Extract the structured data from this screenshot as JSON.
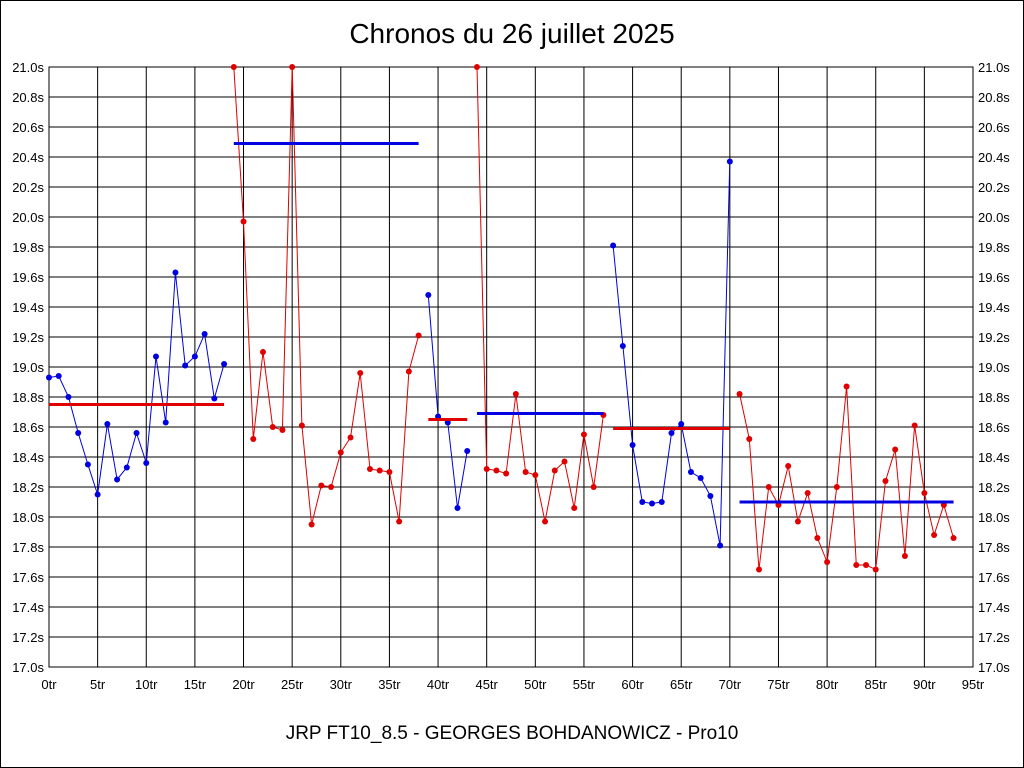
{
  "chart_data": {
    "type": "line",
    "title": "Chronos du 26 juillet 2025",
    "footer": "JRP FT10_8.5 - GEORGES BOHDANOWICZ - Pro10",
    "ylim": [
      17.0,
      21.0
    ],
    "xlim": [
      0,
      95
    ],
    "y_ticks": [
      "17.0s",
      "17.2s",
      "17.4s",
      "17.6s",
      "17.8s",
      "18.0s",
      "18.2s",
      "18.4s",
      "18.6s",
      "18.8s",
      "19.0s",
      "19.2s",
      "19.4s",
      "19.6s",
      "19.8s",
      "20.0s",
      "20.2s",
      "20.4s",
      "20.6s",
      "20.8s",
      "21.0s"
    ],
    "x_ticks": [
      "0tr",
      "5tr",
      "10tr",
      "15tr",
      "20tr",
      "25tr",
      "30tr",
      "35tr",
      "40tr",
      "45tr",
      "50tr",
      "55tr",
      "60tr",
      "65tr",
      "70tr",
      "75tr",
      "80tr",
      "85tr",
      "90tr",
      "95tr"
    ],
    "grid": true,
    "colors": {
      "blue": "#0000e0",
      "red": "#e00000"
    },
    "series": [
      {
        "name": "segment-1",
        "color": "blue",
        "x": [
          0,
          1,
          2,
          3,
          4,
          5,
          6,
          7,
          8,
          9,
          10,
          11,
          12,
          13,
          14,
          15,
          16,
          17,
          18
        ],
        "values": [
          18.93,
          18.94,
          18.8,
          18.56,
          18.35,
          18.15,
          18.62,
          18.25,
          18.33,
          18.56,
          18.36,
          19.07,
          18.63,
          19.63,
          19.01,
          19.07,
          19.22,
          18.79,
          19.02
        ],
        "mean": 18.75
      },
      {
        "name": "segment-2",
        "color": "red",
        "x": [
          19,
          20,
          21,
          22,
          23,
          24,
          25,
          26,
          27,
          28,
          29,
          30,
          31,
          32,
          33,
          34,
          35,
          36,
          37,
          38
        ],
        "values": [
          21.0,
          19.97,
          18.52,
          19.1,
          18.6,
          18.58,
          21.0,
          18.61,
          17.95,
          18.21,
          18.2,
          18.43,
          18.53,
          18.96,
          18.32,
          18.31,
          18.3,
          17.97,
          18.97,
          19.21
        ],
        "mean": 20.49
      },
      {
        "name": "segment-3",
        "color": "blue",
        "x": [
          39,
          40,
          41,
          42,
          43
        ],
        "values": [
          19.48,
          18.67,
          18.63,
          18.06,
          18.44
        ],
        "mean": 18.65
      },
      {
        "name": "segment-4",
        "color": "red",
        "x": [
          44,
          45,
          46,
          47,
          48,
          49,
          50,
          51,
          52,
          53,
          54,
          55,
          56,
          57
        ],
        "values": [
          21.0,
          18.32,
          18.31,
          18.29,
          18.82,
          18.3,
          18.28,
          17.97,
          18.31,
          18.37,
          18.06,
          18.55,
          18.2,
          18.68
        ],
        "mean": 18.69
      },
      {
        "name": "segment-5",
        "color": "blue",
        "x": [
          58,
          59,
          60,
          61,
          62,
          63,
          64,
          65,
          66,
          67,
          68,
          69,
          70
        ],
        "values": [
          19.81,
          19.14,
          18.48,
          18.1,
          18.09,
          18.1,
          18.56,
          18.62,
          18.3,
          18.26,
          18.14,
          17.81,
          20.37
        ],
        "mean": 18.59
      },
      {
        "name": "segment-6",
        "color": "red",
        "x": [
          71,
          72,
          73,
          74,
          75,
          76,
          77,
          78,
          79,
          80,
          81,
          82,
          83,
          84,
          85,
          86,
          87,
          88,
          89,
          90,
          91,
          92,
          93
        ],
        "values": [
          18.82,
          18.52,
          17.65,
          18.2,
          18.08,
          18.34,
          17.97,
          18.16,
          17.86,
          17.7,
          18.2,
          18.87,
          17.68,
          17.68,
          17.65,
          18.24,
          18.45,
          17.74,
          18.61,
          18.16,
          17.88,
          18.08,
          17.86
        ],
        "mean": 18.1
      }
    ],
    "mean_lines": [
      {
        "name": "mean-1",
        "color": "red",
        "x_start": 0,
        "x_end": 18,
        "value": 18.75
      },
      {
        "name": "mean-2",
        "color": "blue",
        "x_start": 19,
        "x_end": 38,
        "value": 20.49
      },
      {
        "name": "mean-3",
        "color": "red",
        "x_start": 39,
        "x_end": 43,
        "value": 18.65
      },
      {
        "name": "mean-4",
        "color": "blue",
        "x_start": 44,
        "x_end": 57,
        "value": 18.69
      },
      {
        "name": "mean-5",
        "color": "red",
        "x_start": 58,
        "x_end": 70,
        "value": 18.59
      },
      {
        "name": "mean-6",
        "color": "blue",
        "x_start": 71,
        "x_end": 93,
        "value": 18.1
      }
    ]
  }
}
